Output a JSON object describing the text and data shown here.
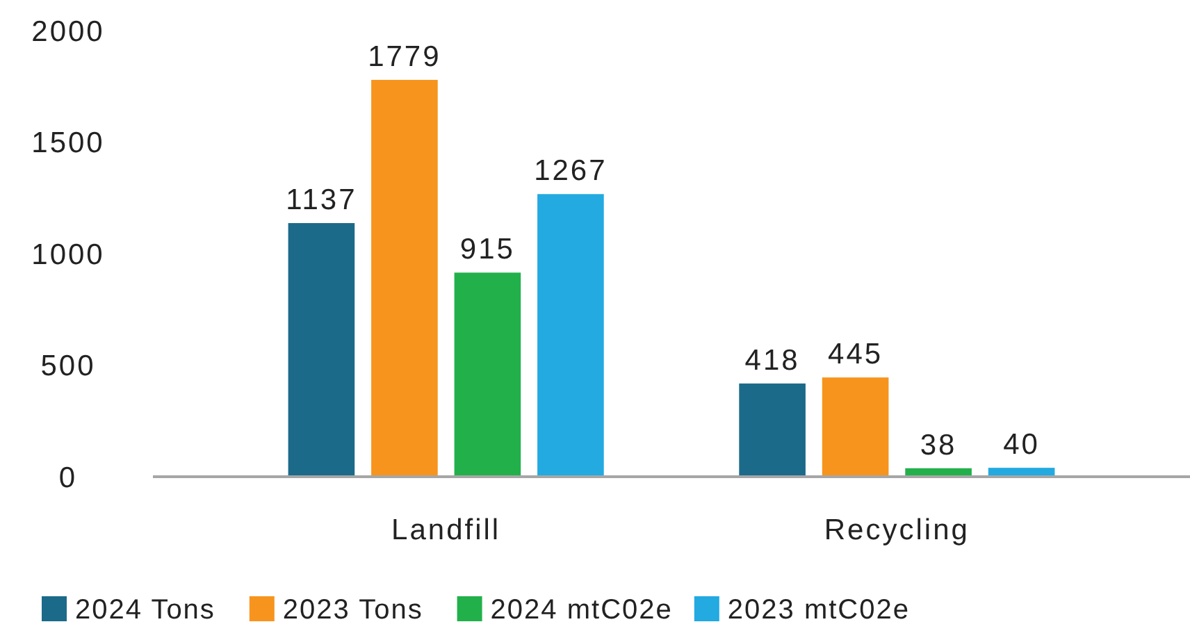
{
  "chart_data": {
    "type": "bar",
    "categories": [
      "Landfill",
      "Recycling"
    ],
    "series": [
      {
        "name": "2024 Tons",
        "color": "#1b6a8a",
        "values": [
          1137,
          418
        ]
      },
      {
        "name": "2023 Tons",
        "color": "#f7941d",
        "values": [
          1779,
          445
        ]
      },
      {
        "name": "2024 mtC02e",
        "color": "#22b04b",
        "values": [
          915,
          38
        ]
      },
      {
        "name": "2023 mtC02e",
        "color": "#22aae1",
        "values": [
          1267,
          40
        ]
      }
    ],
    "ylim": [
      0,
      2000
    ],
    "yticks": [
      0,
      500,
      1000,
      1500,
      2000
    ],
    "grid": false,
    "legend": "bottom",
    "data_labels": true
  }
}
